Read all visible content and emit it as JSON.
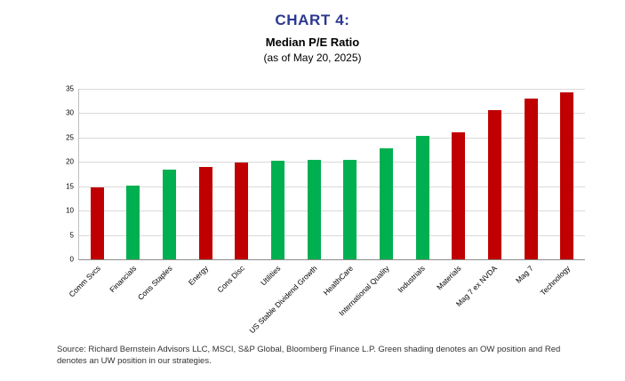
{
  "header": {
    "title": "CHART 4:",
    "subtitle": "Median P/E Ratio",
    "date_note": "(as of May 20, 2025)",
    "title_color": "#2B3890"
  },
  "chart_data": {
    "type": "bar",
    "title": "CHART 4: Median P/E Ratio (as of May 20, 2025)",
    "xlabel": "",
    "ylabel": "",
    "ylim": [
      0,
      35
    ],
    "ytick_step": 5,
    "grid": true,
    "legend_position": "none",
    "categories": [
      "Comm Svcs",
      "Financials",
      "Cons Staples",
      "Energy",
      "Cons Disc",
      "Utilities",
      "US Stable Dividend Growth",
      "HealthCare",
      "International Quality",
      "Industrials",
      "Materials",
      "Mag 7 ex NVDA",
      "Mag 7",
      "Technology"
    ],
    "values": [
      14.7,
      15.1,
      18.4,
      19.0,
      19.8,
      20.3,
      20.4,
      20.5,
      22.7,
      25.4,
      26.0,
      30.7,
      33.0,
      34.3
    ],
    "bar_colors": [
      "red",
      "green",
      "green",
      "red",
      "red",
      "green",
      "green",
      "green",
      "green",
      "green",
      "red",
      "red",
      "red",
      "red"
    ],
    "palette": {
      "red": "#C00000",
      "green": "#00B050"
    },
    "color_meaning": {
      "green": "OW position",
      "red": "UW position"
    }
  },
  "footer": {
    "source": "Source: Richard Bernstein Advisors LLC, MSCI, S&P Global, Bloomberg Finance L.P. Green shading denotes an OW position and Red denotes an UW position in our strategies."
  }
}
